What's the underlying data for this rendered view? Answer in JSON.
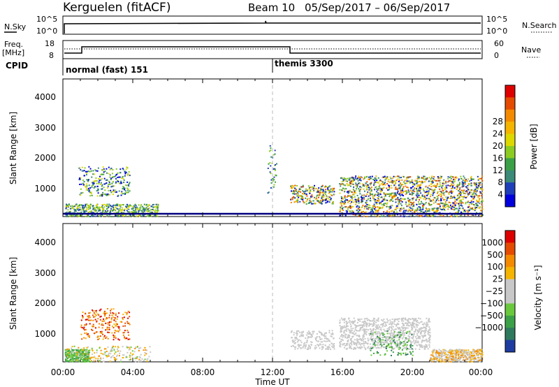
{
  "header": {
    "site": "Kerguelen (fitACF)",
    "beam": "Beam 10",
    "date_range": "05/Sep/2017 – 06/Sep/2017"
  },
  "top_panels": {
    "nsky_label": "N.Sky",
    "nsky_ticks": [
      "10^5",
      "10^0"
    ],
    "nsearch_label": "N.Search",
    "nsearch_ticks": [
      "10^5",
      "10^0"
    ],
    "freq_label_line1": "Freq.",
    "freq_label_line2": "[MHz]",
    "freq_ticks": [
      "18",
      "8"
    ],
    "nave_label": "Nave",
    "nave_ticks": [
      "60",
      "0"
    ],
    "cpid_label": "CPID",
    "cpid_programs": [
      {
        "name": "normal (fast) 151",
        "start_hour": 0
      },
      {
        "name": "themis 3300",
        "start_hour": 12
      }
    ]
  },
  "chart_data": [
    {
      "type": "heatmap",
      "title": "",
      "ylabel": "Slant Range [km]",
      "xlabel": "",
      "ylim": [
        180,
        4600
      ],
      "xlim_hours": [
        0,
        24
      ],
      "yticks": [
        "1000",
        "2000",
        "3000",
        "4000"
      ],
      "colorbar": {
        "label": "Power [dB]",
        "ticks": [
          "4",
          "8",
          "12",
          "16",
          "20",
          "24",
          "28"
        ],
        "range": [
          0,
          30
        ],
        "colors": [
          "#0000dd",
          "#1f3fb8",
          "#3c8a78",
          "#3ca048",
          "#8ccc22",
          "#ddd800",
          "#f4b400",
          "#f48a00",
          "#e44a00",
          "#dd0000"
        ]
      },
      "ground_scatter_line_km": 200
    },
    {
      "type": "heatmap",
      "title": "",
      "ylabel": "Slant Range [km]",
      "xlabel": "Time UT",
      "ylim": [
        180,
        4600
      ],
      "xlim_hours": [
        0,
        24
      ],
      "yticks": [
        "1000",
        "2000",
        "3000",
        "4000"
      ],
      "xticks": [
        "00:00",
        "04:00",
        "08:00",
        "12:00",
        "16:00",
        "20:00",
        "00:00"
      ],
      "colorbar": {
        "label": "Velocity [m s⁻¹]",
        "ticks": [
          "1000",
          "500",
          "100",
          "25",
          "−25",
          "−100",
          "−500",
          "−1000"
        ],
        "colors": [
          "#1e3ca0",
          "#2f7a5e",
          "#3ca048",
          "#6ac83c",
          "#c8c8c8",
          "#c8c8c8",
          "#f4b400",
          "#f48a00",
          "#e44a00",
          "#dd0000"
        ]
      }
    }
  ]
}
